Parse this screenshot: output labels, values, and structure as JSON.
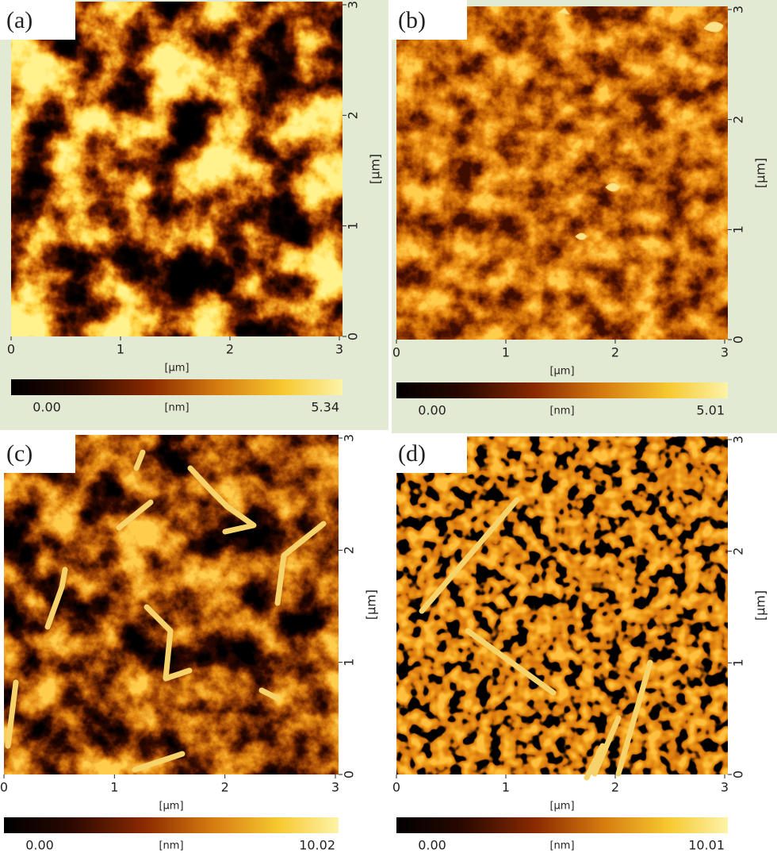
{
  "panels": [
    {
      "label": "(a)",
      "x_ticks": [
        "0",
        "1",
        "2",
        "3"
      ],
      "y_ticks": [
        "0",
        "1",
        "2",
        "3"
      ],
      "x_unit": "[µm]",
      "y_unit": "[µm]",
      "colorbar": {
        "min": "0.00",
        "unit": "[nm]",
        "max": "5.34"
      }
    },
    {
      "label": "(b)",
      "x_ticks": [
        "0",
        "1",
        "2",
        "3"
      ],
      "y_ticks": [
        "0",
        "1",
        "2",
        "3"
      ],
      "x_unit": "[µm]",
      "y_unit": "[µm]",
      "colorbar": {
        "min": "0.00",
        "unit": "[nm]",
        "max": "5.01"
      }
    },
    {
      "label": "(c)",
      "x_ticks": [
        "0",
        "1",
        "2",
        "3"
      ],
      "y_ticks": [
        "0",
        "1",
        "2",
        "3"
      ],
      "x_unit": "[µm]",
      "y_unit": "[µm]",
      "colorbar": {
        "min": "0.00",
        "unit": "[nm]",
        "max": "10.02"
      }
    },
    {
      "label": "(d)",
      "x_ticks": [
        "0",
        "1",
        "2",
        "3"
      ],
      "y_ticks": [
        "0",
        "1",
        "2",
        "3"
      ],
      "x_unit": "[µm]",
      "y_unit": "[µm]",
      "colorbar": {
        "min": "0.00",
        "unit": "[nm]",
        "max": "10.01"
      }
    }
  ]
}
